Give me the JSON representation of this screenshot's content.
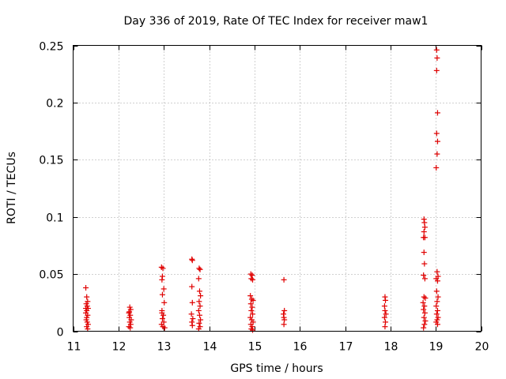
{
  "chart_data": {
    "type": "scatter",
    "title": "Day 336 of 2019, Rate Of TEC Index for receiver maw1",
    "xlabel": "GPS time / hours",
    "ylabel": "ROTI / TECUs",
    "xlim": [
      11,
      20
    ],
    "ylim": [
      0,
      0.25
    ],
    "x_ticks": [
      11,
      12,
      13,
      14,
      15,
      16,
      17,
      18,
      19,
      20
    ],
    "y_ticks": [
      0,
      0.05,
      0.1,
      0.15,
      0.2,
      0.25
    ],
    "y_tick_labels": [
      "0",
      "0.05",
      "0.1",
      "0.15",
      "0.2",
      "0.25"
    ],
    "grid": true,
    "marker": "+",
    "color": "#e00000",
    "series": [
      {
        "name": "maw1",
        "points": [
          [
            11.28,
            0.038
          ],
          [
            11.3,
            0.03
          ],
          [
            11.32,
            0.026
          ],
          [
            11.29,
            0.024
          ],
          [
            11.31,
            0.022
          ],
          [
            11.33,
            0.02
          ],
          [
            11.3,
            0.018
          ],
          [
            11.28,
            0.016
          ],
          [
            11.32,
            0.014
          ],
          [
            11.3,
            0.012
          ],
          [
            11.29,
            0.01
          ],
          [
            11.31,
            0.008
          ],
          [
            11.33,
            0.006
          ],
          [
            11.3,
            0.004
          ],
          [
            11.32,
            0.002
          ],
          [
            11.28,
            0.02
          ],
          [
            12.25,
            0.021
          ],
          [
            12.27,
            0.019
          ],
          [
            12.23,
            0.016
          ],
          [
            12.26,
            0.014
          ],
          [
            12.24,
            0.012
          ],
          [
            12.28,
            0.01
          ],
          [
            12.25,
            0.008
          ],
          [
            12.27,
            0.006
          ],
          [
            12.23,
            0.004
          ],
          [
            12.26,
            0.003
          ],
          [
            12.24,
            0.017
          ],
          [
            12.95,
            0.056
          ],
          [
            12.98,
            0.055
          ],
          [
            12.97,
            0.048
          ],
          [
            12.96,
            0.045
          ],
          [
            13.0,
            0.037
          ],
          [
            12.97,
            0.032
          ],
          [
            13.01,
            0.025
          ],
          [
            12.96,
            0.018
          ],
          [
            12.99,
            0.014
          ],
          [
            12.97,
            0.011
          ],
          [
            13.0,
            0.008
          ],
          [
            12.95,
            0.006
          ],
          [
            12.98,
            0.004
          ],
          [
            13.02,
            0.003
          ],
          [
            12.96,
            0.016
          ],
          [
            13.62,
            0.063
          ],
          [
            13.63,
            0.062
          ],
          [
            13.62,
            0.039
          ],
          [
            13.63,
            0.025
          ],
          [
            13.61,
            0.015
          ],
          [
            13.64,
            0.011
          ],
          [
            13.62,
            0.008
          ],
          [
            13.63,
            0.005
          ],
          [
            13.78,
            0.055
          ],
          [
            13.8,
            0.054
          ],
          [
            13.77,
            0.046
          ],
          [
            13.79,
            0.035
          ],
          [
            13.81,
            0.031
          ],
          [
            13.78,
            0.026
          ],
          [
            13.8,
            0.022
          ],
          [
            13.77,
            0.018
          ],
          [
            13.79,
            0.014
          ],
          [
            13.81,
            0.01
          ],
          [
            13.78,
            0.007
          ],
          [
            13.8,
            0.004
          ],
          [
            13.77,
            0.002
          ],
          [
            14.92,
            0.05
          ],
          [
            14.95,
            0.049
          ],
          [
            14.93,
            0.046
          ],
          [
            14.96,
            0.045
          ],
          [
            14.91,
            0.031
          ],
          [
            14.94,
            0.028
          ],
          [
            14.97,
            0.027
          ],
          [
            14.92,
            0.024
          ],
          [
            14.95,
            0.021
          ],
          [
            14.93,
            0.018
          ],
          [
            14.96,
            0.015
          ],
          [
            14.91,
            0.012
          ],
          [
            14.94,
            0.01
          ],
          [
            14.97,
            0.008
          ],
          [
            14.92,
            0.006
          ],
          [
            14.95,
            0.004
          ],
          [
            14.93,
            0.002
          ],
          [
            14.96,
            0.001
          ],
          [
            15.65,
            0.045
          ],
          [
            15.66,
            0.018
          ],
          [
            15.64,
            0.015
          ],
          [
            15.65,
            0.012
          ],
          [
            15.66,
            0.01
          ],
          [
            15.65,
            0.006
          ],
          [
            17.88,
            0.03
          ],
          [
            17.89,
            0.027
          ],
          [
            17.87,
            0.022
          ],
          [
            17.88,
            0.018
          ],
          [
            17.9,
            0.015
          ],
          [
            17.87,
            0.012
          ],
          [
            17.89,
            0.008
          ],
          [
            17.88,
            0.004
          ],
          [
            18.74,
            0.098
          ],
          [
            18.75,
            0.095
          ],
          [
            18.76,
            0.091
          ],
          [
            18.74,
            0.087
          ],
          [
            18.73,
            0.082
          ],
          [
            18.76,
            0.082
          ],
          [
            18.74,
            0.069
          ],
          [
            18.75,
            0.059
          ],
          [
            18.73,
            0.049
          ],
          [
            18.76,
            0.046
          ],
          [
            18.74,
            0.03
          ],
          [
            18.77,
            0.029
          ],
          [
            18.72,
            0.025
          ],
          [
            18.75,
            0.022
          ],
          [
            18.73,
            0.019
          ],
          [
            18.76,
            0.016
          ],
          [
            18.74,
            0.012
          ],
          [
            18.77,
            0.009
          ],
          [
            18.75,
            0.006
          ],
          [
            18.73,
            0.003
          ],
          [
            19.02,
            0.246
          ],
          [
            19.03,
            0.239
          ],
          [
            19.02,
            0.228
          ],
          [
            19.04,
            0.191
          ],
          [
            19.02,
            0.173
          ],
          [
            19.04,
            0.166
          ],
          [
            19.03,
            0.155
          ],
          [
            19.01,
            0.143
          ],
          [
            19.03,
            0.052
          ],
          [
            19.05,
            0.048
          ],
          [
            19.01,
            0.046
          ],
          [
            19.04,
            0.044
          ],
          [
            19.02,
            0.035
          ],
          [
            19.05,
            0.03
          ],
          [
            19.03,
            0.026
          ],
          [
            19.01,
            0.022
          ],
          [
            19.04,
            0.018
          ],
          [
            19.02,
            0.015
          ],
          [
            19.05,
            0.012
          ],
          [
            19.03,
            0.01
          ],
          [
            19.01,
            0.008
          ],
          [
            19.04,
            0.006
          ]
        ]
      }
    ]
  }
}
